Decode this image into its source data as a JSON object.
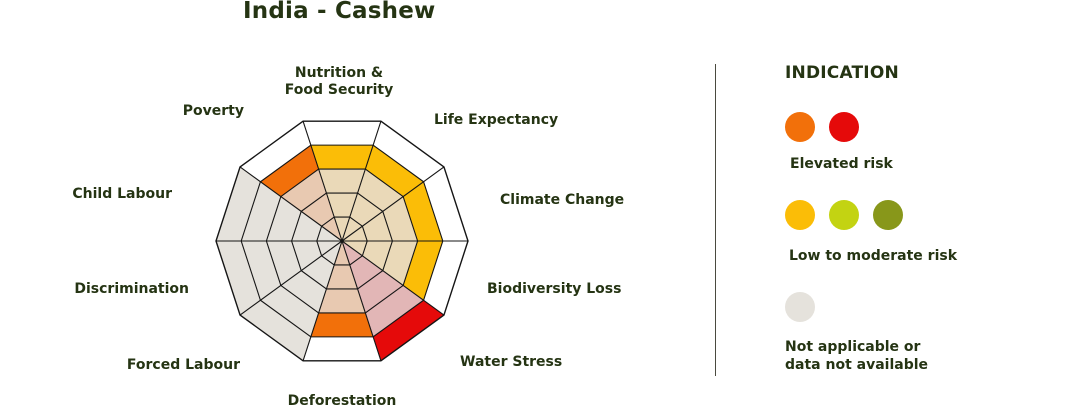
{
  "title": "India - Cashew",
  "chart_data": {
    "type": "radar",
    "title": "India - Cashew",
    "levels": 4,
    "axes": [
      {
        "label_lines": [
          "Nutrition &",
          "Food Security"
        ],
        "value": 4,
        "risk": "low-to-moderate",
        "color": "#fbbd07"
      },
      {
        "label_lines": [
          "Life Expectancy"
        ],
        "value": 4,
        "risk": "low-to-moderate",
        "color": "#fbbd07"
      },
      {
        "label_lines": [
          "Climate Change"
        ],
        "value": 4,
        "risk": "low-to-moderate",
        "color": "#fbbd07"
      },
      {
        "label_lines": [
          "Biodiversity Loss"
        ],
        "value": 4,
        "risk": "low-to-moderate",
        "color": "#fbbd07"
      },
      {
        "label_lines": [
          "Water Stress"
        ],
        "value": 5,
        "risk": "elevated",
        "color": "#e50a0a"
      },
      {
        "label_lines": [
          "Deforestation"
        ],
        "value": 4,
        "risk": "elevated",
        "color": "#f2700a"
      },
      {
        "label_lines": [
          "Forced Labour"
        ],
        "value": 5,
        "risk": "not applicable",
        "color": "#e5e2dc"
      },
      {
        "label_lines": [
          "Discrimination"
        ],
        "value": 5,
        "risk": "not applicable",
        "color": "#e5e2dc"
      },
      {
        "label_lines": [
          "Child Labour"
        ],
        "value": 5,
        "risk": "not applicable",
        "color": "#e5e2dc"
      },
      {
        "label_lines": [
          "Poverty"
        ],
        "value": 4,
        "risk": "elevated",
        "color": "#f2700a"
      }
    ]
  },
  "legend": {
    "title": "INDICATION",
    "groups": [
      {
        "label": "Elevated risk",
        "colors": [
          "#f2700a",
          "#e50a0a"
        ]
      },
      {
        "label": "Low to moderate risk",
        "colors": [
          "#fbbd07",
          "#c3d312",
          "#88971a"
        ]
      },
      {
        "label_lines": [
          "Not applicable or",
          "data not available"
        ],
        "colors": [
          "#e5e2dc"
        ]
      }
    ]
  }
}
